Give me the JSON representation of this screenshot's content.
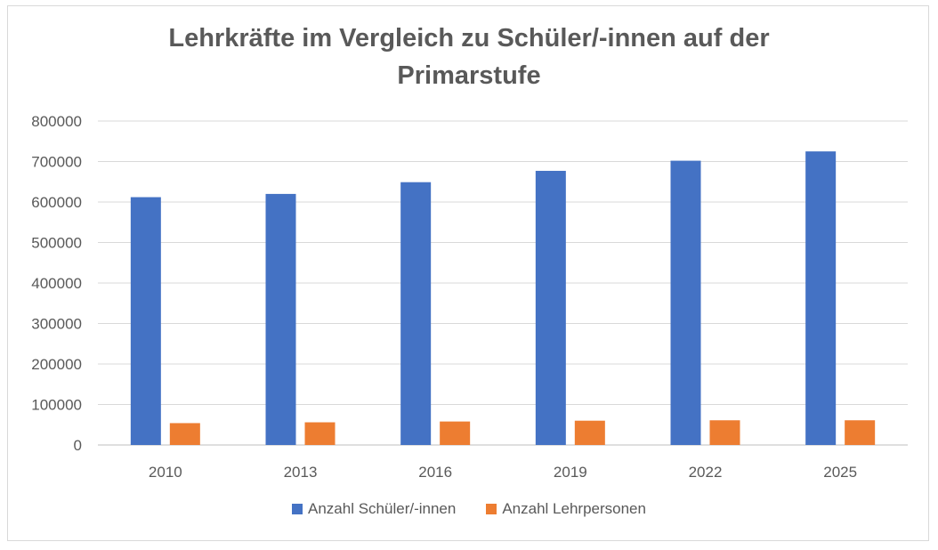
{
  "chart_data": {
    "type": "bar",
    "title_lines": [
      "Lehrkräfte im Vergleich zu Schüler/-innen auf der",
      "Primarstufe"
    ],
    "xlabel": "",
    "ylabel": "",
    "categories": [
      "2010",
      "2013",
      "2016",
      "2019",
      "2022",
      "2025"
    ],
    "y_ticks": [
      "0",
      "100000",
      "200000",
      "300000",
      "400000",
      "500000",
      "600000",
      "700000",
      "800000"
    ],
    "ylim": [
      0,
      800000
    ],
    "grid": true,
    "legend_position": "bottom",
    "series": [
      {
        "name": "Anzahl Schüler/-innen",
        "color": "#4472c4",
        "values": [
          612000,
          620000,
          649000,
          677000,
          702000,
          725000
        ]
      },
      {
        "name": "Anzahl Lehrpersonen",
        "color": "#ed7d31",
        "values": [
          54000,
          56000,
          58000,
          60000,
          61000,
          61000
        ]
      }
    ]
  }
}
